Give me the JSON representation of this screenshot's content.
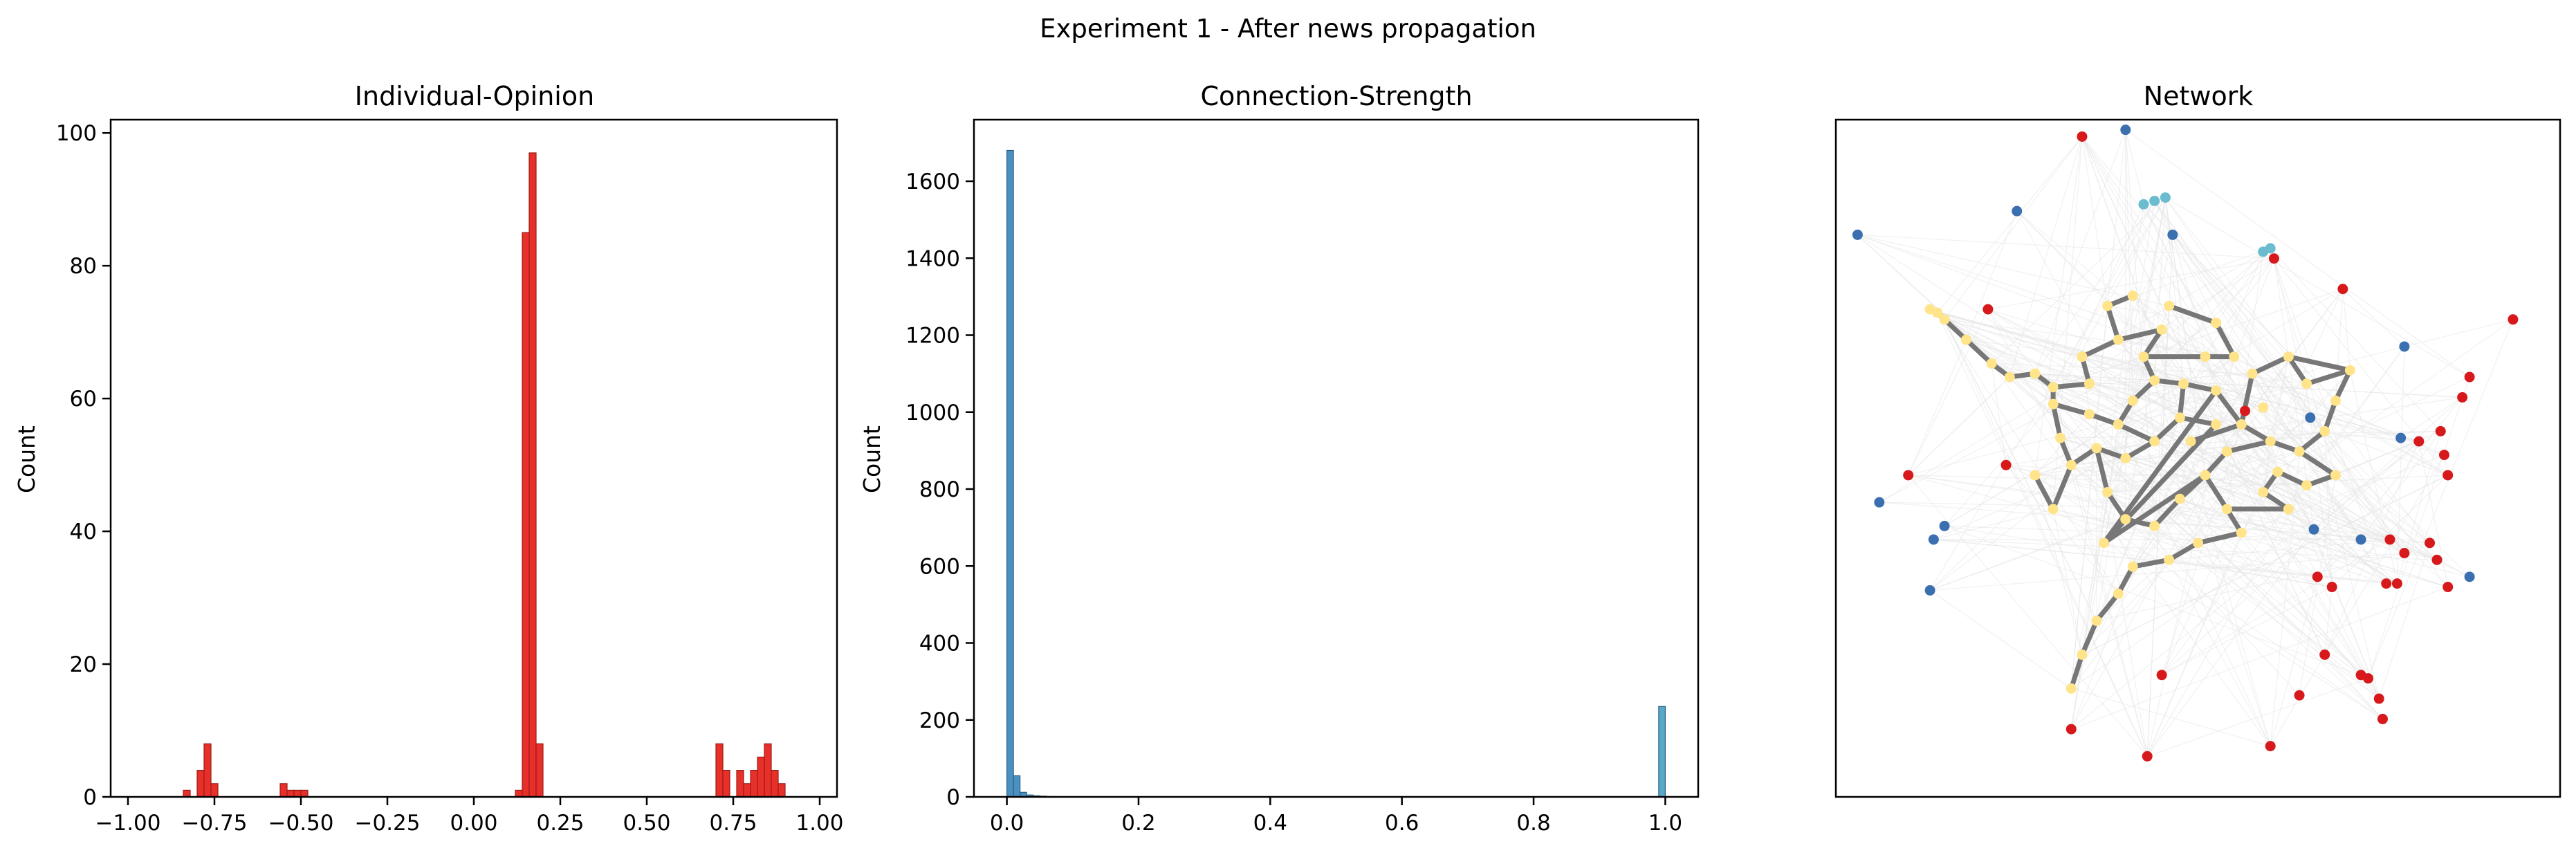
{
  "suptitle": "Experiment 1 - After news propagation",
  "colors": {
    "opinion_bar": "#e8302a",
    "opinion_edge": "#9b1b16",
    "strength_bar": "#4a90c0",
    "strength_bar_at_1": "#5aa8c8",
    "strength_edge": "#2a5f86",
    "node_red": "#d7191c",
    "node_blue": "#3a6fb0",
    "node_cyan": "#6cbcd0",
    "node_yellow": "#ffe48a",
    "edge_dark": "#777777",
    "edge_light": "#e6e6e6"
  },
  "chart_data": [
    {
      "type": "bar",
      "title": "Individual-Opinion",
      "xlabel": "",
      "ylabel": "Count",
      "xlim": [
        -1.05,
        1.05
      ],
      "ylim": [
        0,
        102
      ],
      "xticks": [
        "−1.00",
        "−0.75",
        "−0.50",
        "−0.25",
        "0.00",
        "0.25",
        "0.50",
        "0.75",
        "1.00"
      ],
      "xtick_values": [
        -1.0,
        -0.75,
        -0.5,
        -0.25,
        0.0,
        0.25,
        0.5,
        0.75,
        1.0
      ],
      "yticks": [
        "0",
        "20",
        "40",
        "60",
        "80",
        "100"
      ],
      "ytick_values": [
        0,
        20,
        40,
        60,
        80,
        100
      ],
      "bin_width": 0.02,
      "bins": [
        {
          "x": -0.84,
          "value": 1
        },
        {
          "x": -0.8,
          "value": 4
        },
        {
          "x": -0.78,
          "value": 8
        },
        {
          "x": -0.76,
          "value": 2
        },
        {
          "x": -0.56,
          "value": 2
        },
        {
          "x": -0.54,
          "value": 1
        },
        {
          "x": -0.52,
          "value": 1
        },
        {
          "x": -0.5,
          "value": 1
        },
        {
          "x": 0.12,
          "value": 1
        },
        {
          "x": 0.14,
          "value": 85
        },
        {
          "x": 0.16,
          "value": 97
        },
        {
          "x": 0.18,
          "value": 8
        },
        {
          "x": 0.7,
          "value": 8
        },
        {
          "x": 0.72,
          "value": 4
        },
        {
          "x": 0.76,
          "value": 4
        },
        {
          "x": 0.78,
          "value": 2
        },
        {
          "x": 0.8,
          "value": 4
        },
        {
          "x": 0.82,
          "value": 6
        },
        {
          "x": 0.84,
          "value": 8
        },
        {
          "x": 0.86,
          "value": 4
        },
        {
          "x": 0.88,
          "value": 2
        }
      ]
    },
    {
      "type": "bar",
      "title": "Connection-Strength",
      "xlabel": "",
      "ylabel": "Count",
      "xlim": [
        -0.05,
        1.05
      ],
      "ylim": [
        0,
        1760
      ],
      "xticks": [
        "0.0",
        "0.2",
        "0.4",
        "0.6",
        "0.8",
        "1.0"
      ],
      "xtick_values": [
        0.0,
        0.2,
        0.4,
        0.6,
        0.8,
        1.0
      ],
      "yticks": [
        "0",
        "200",
        "400",
        "600",
        "800",
        "1000",
        "1200",
        "1400",
        "1600"
      ],
      "ytick_values": [
        0,
        200,
        400,
        600,
        800,
        1000,
        1200,
        1400,
        1600
      ],
      "bin_width": 0.01,
      "bins": [
        {
          "x": 0.0,
          "value": 1680
        },
        {
          "x": 0.01,
          "value": 55
        },
        {
          "x": 0.02,
          "value": 12
        },
        {
          "x": 0.03,
          "value": 5
        },
        {
          "x": 0.04,
          "value": 3
        },
        {
          "x": 0.05,
          "value": 2
        },
        {
          "x": 0.06,
          "value": 1
        },
        {
          "x": 0.99,
          "value": 235
        }
      ]
    },
    {
      "type": "network",
      "title": "Network",
      "xlim": [
        -1,
        1
      ],
      "ylim": [
        -1,
        1
      ],
      "nodes": [
        {
          "x": -0.32,
          "y": 0.95,
          "c": "red"
        },
        {
          "x": -0.58,
          "y": 0.44,
          "c": "red"
        },
        {
          "x": 0.21,
          "y": 0.59,
          "c": "red"
        },
        {
          "x": 0.4,
          "y": 0.5,
          "c": "red"
        },
        {
          "x": 0.87,
          "y": 0.41,
          "c": "red"
        },
        {
          "x": 0.75,
          "y": 0.24,
          "c": "red"
        },
        {
          "x": 0.73,
          "y": 0.18,
          "c": "red"
        },
        {
          "x": 0.67,
          "y": 0.08,
          "c": "red"
        },
        {
          "x": 0.68,
          "y": 0.01,
          "c": "red"
        },
        {
          "x": 0.69,
          "y": -0.05,
          "c": "red"
        },
        {
          "x": 0.61,
          "y": 0.05,
          "c": "red"
        },
        {
          "x": 0.53,
          "y": -0.24,
          "c": "red"
        },
        {
          "x": 0.57,
          "y": -0.28,
          "c": "red"
        },
        {
          "x": 0.64,
          "y": -0.25,
          "c": "red"
        },
        {
          "x": 0.55,
          "y": -0.37,
          "c": "red"
        },
        {
          "x": 0.66,
          "y": -0.3,
          "c": "red"
        },
        {
          "x": 0.69,
          "y": -0.38,
          "c": "red"
        },
        {
          "x": 0.37,
          "y": -0.38,
          "c": "red"
        },
        {
          "x": 0.52,
          "y": -0.37,
          "c": "red"
        },
        {
          "x": 0.35,
          "y": -0.58,
          "c": "red"
        },
        {
          "x": 0.47,
          "y": -0.65,
          "c": "red"
        },
        {
          "x": 0.5,
          "y": -0.71,
          "c": "red"
        },
        {
          "x": 0.51,
          "y": -0.77,
          "c": "red"
        },
        {
          "x": 0.45,
          "y": -0.64,
          "c": "red"
        },
        {
          "x": 0.28,
          "y": -0.7,
          "c": "red"
        },
        {
          "x": -0.1,
          "y": -0.64,
          "c": "red"
        },
        {
          "x": -0.35,
          "y": -0.8,
          "c": "red"
        },
        {
          "x": -0.14,
          "y": -0.88,
          "c": "red"
        },
        {
          "x": 0.2,
          "y": -0.85,
          "c": "red"
        },
        {
          "x": -0.8,
          "y": -0.05,
          "c": "red"
        },
        {
          "x": -0.53,
          "y": -0.02,
          "c": "red"
        },
        {
          "x": 0.33,
          "y": -0.35,
          "c": "red"
        },
        {
          "x": 0.13,
          "y": 0.14,
          "c": "red"
        },
        {
          "x": -0.2,
          "y": 0.97,
          "c": "blue"
        },
        {
          "x": -0.5,
          "y": 0.73,
          "c": "blue"
        },
        {
          "x": -0.07,
          "y": 0.66,
          "c": "blue"
        },
        {
          "x": -0.94,
          "y": 0.66,
          "c": "blue"
        },
        {
          "x": -0.88,
          "y": -0.13,
          "c": "blue"
        },
        {
          "x": -0.73,
          "y": -0.24,
          "c": "blue"
        },
        {
          "x": -0.7,
          "y": -0.2,
          "c": "blue"
        },
        {
          "x": -0.74,
          "y": -0.39,
          "c": "blue"
        },
        {
          "x": 0.32,
          "y": -0.21,
          "c": "blue"
        },
        {
          "x": 0.45,
          "y": -0.24,
          "c": "blue"
        },
        {
          "x": 0.56,
          "y": 0.06,
          "c": "blue"
        },
        {
          "x": 0.75,
          "y": -0.35,
          "c": "blue"
        },
        {
          "x": 0.31,
          "y": 0.12,
          "c": "blue"
        },
        {
          "x": 0.57,
          "y": 0.33,
          "c": "blue"
        },
        {
          "x": -0.15,
          "y": 0.75,
          "c": "cyan"
        },
        {
          "x": -0.12,
          "y": 0.76,
          "c": "cyan"
        },
        {
          "x": -0.09,
          "y": 0.77,
          "c": "cyan"
        },
        {
          "x": 0.18,
          "y": 0.61,
          "c": "cyan"
        },
        {
          "x": 0.2,
          "y": 0.62,
          "c": "cyan"
        },
        {
          "x": -0.74,
          "y": 0.44,
          "c": "yellow"
        },
        {
          "x": -0.72,
          "y": 0.43,
          "c": "yellow"
        },
        {
          "x": -0.7,
          "y": 0.41,
          "c": "yellow"
        },
        {
          "x": -0.64,
          "y": 0.35,
          "c": "yellow"
        },
        {
          "x": -0.57,
          "y": 0.28,
          "c": "yellow"
        },
        {
          "x": -0.52,
          "y": 0.24,
          "c": "yellow"
        },
        {
          "x": -0.45,
          "y": 0.25,
          "c": "yellow"
        },
        {
          "x": -0.4,
          "y": 0.21,
          "c": "yellow"
        },
        {
          "x": -0.4,
          "y": 0.16,
          "c": "yellow"
        },
        {
          "x": -0.3,
          "y": 0.13,
          "c": "yellow"
        },
        {
          "x": -0.22,
          "y": 0.1,
          "c": "yellow"
        },
        {
          "x": -0.18,
          "y": 0.17,
          "c": "yellow"
        },
        {
          "x": -0.12,
          "y": 0.23,
          "c": "yellow"
        },
        {
          "x": -0.04,
          "y": 0.22,
          "c": "yellow"
        },
        {
          "x": 0.05,
          "y": 0.2,
          "c": "yellow"
        },
        {
          "x": 0.12,
          "y": 0.1,
          "c": "yellow"
        },
        {
          "x": 0.2,
          "y": 0.05,
          "c": "yellow"
        },
        {
          "x": 0.28,
          "y": 0.02,
          "c": "yellow"
        },
        {
          "x": 0.35,
          "y": 0.08,
          "c": "yellow"
        },
        {
          "x": 0.38,
          "y": 0.17,
          "c": "yellow"
        },
        {
          "x": 0.42,
          "y": 0.26,
          "c": "yellow"
        },
        {
          "x": 0.38,
          "y": -0.05,
          "c": "yellow"
        },
        {
          "x": 0.3,
          "y": -0.08,
          "c": "yellow"
        },
        {
          "x": 0.22,
          "y": -0.04,
          "c": "yellow"
        },
        {
          "x": 0.18,
          "y": -0.1,
          "c": "yellow"
        },
        {
          "x": 0.25,
          "y": -0.15,
          "c": "yellow"
        },
        {
          "x": 0.15,
          "y": 0.25,
          "c": "yellow"
        },
        {
          "x": -0.25,
          "y": 0.45,
          "c": "yellow"
        },
        {
          "x": -0.22,
          "y": 0.35,
          "c": "yellow"
        },
        {
          "x": -0.18,
          "y": 0.48,
          "c": "yellow"
        },
        {
          "x": -0.1,
          "y": 0.38,
          "c": "yellow"
        },
        {
          "x": -0.15,
          "y": 0.3,
          "c": "yellow"
        },
        {
          "x": 0.02,
          "y": 0.3,
          "c": "yellow"
        },
        {
          "x": -0.05,
          "y": 0.12,
          "c": "yellow"
        },
        {
          "x": -0.12,
          "y": 0.05,
          "c": "yellow"
        },
        {
          "x": -0.2,
          "y": 0.0,
          "c": "yellow"
        },
        {
          "x": -0.28,
          "y": 0.03,
          "c": "yellow"
        },
        {
          "x": -0.35,
          "y": -0.02,
          "c": "yellow"
        },
        {
          "x": -0.38,
          "y": 0.06,
          "c": "yellow"
        },
        {
          "x": -0.25,
          "y": -0.1,
          "c": "yellow"
        },
        {
          "x": -0.2,
          "y": -0.18,
          "c": "yellow"
        },
        {
          "x": -0.12,
          "y": -0.2,
          "c": "yellow"
        },
        {
          "x": -0.05,
          "y": -0.12,
          "c": "yellow"
        },
        {
          "x": 0.02,
          "y": -0.05,
          "c": "yellow"
        },
        {
          "x": 0.08,
          "y": 0.02,
          "c": "yellow"
        },
        {
          "x": 0.08,
          "y": -0.15,
          "c": "yellow"
        },
        {
          "x": 0.12,
          "y": -0.22,
          "c": "yellow"
        },
        {
          "x": 0.0,
          "y": -0.25,
          "c": "yellow"
        },
        {
          "x": -0.08,
          "y": -0.3,
          "c": "yellow"
        },
        {
          "x": -0.18,
          "y": -0.32,
          "c": "yellow"
        },
        {
          "x": -0.22,
          "y": -0.4,
          "c": "yellow"
        },
        {
          "x": -0.28,
          "y": -0.48,
          "c": "yellow"
        },
        {
          "x": -0.32,
          "y": -0.58,
          "c": "yellow"
        },
        {
          "x": -0.35,
          "y": -0.68,
          "c": "yellow"
        },
        {
          "x": -0.3,
          "y": 0.22,
          "c": "yellow"
        },
        {
          "x": -0.32,
          "y": 0.3,
          "c": "yellow"
        },
        {
          "x": -0.08,
          "y": 0.45,
          "c": "yellow"
        },
        {
          "x": 0.05,
          "y": 0.4,
          "c": "yellow"
        },
        {
          "x": 0.1,
          "y": 0.3,
          "c": "yellow"
        },
        {
          "x": 0.25,
          "y": 0.3,
          "c": "yellow"
        },
        {
          "x": 0.3,
          "y": 0.22,
          "c": "yellow"
        },
        {
          "x": -0.4,
          "y": -0.15,
          "c": "yellow"
        },
        {
          "x": -0.45,
          "y": -0.05,
          "c": "yellow"
        },
        {
          "x": 0.18,
          "y": 0.15,
          "c": "yellow"
        },
        {
          "x": -0.02,
          "y": 0.05,
          "c": "yellow"
        },
        {
          "x": 0.05,
          "y": 0.1,
          "c": "yellow"
        },
        {
          "x": -0.26,
          "y": -0.25,
          "c": "yellow"
        }
      ],
      "edges": [
        [
          52,
          53
        ],
        [
          53,
          54
        ],
        [
          54,
          55
        ],
        [
          55,
          56
        ],
        [
          56,
          57
        ],
        [
          57,
          58
        ],
        [
          58,
          59
        ],
        [
          59,
          60
        ],
        [
          60,
          61
        ],
        [
          61,
          62
        ],
        [
          62,
          63
        ],
        [
          63,
          64
        ],
        [
          64,
          65
        ],
        [
          65,
          66
        ],
        [
          66,
          67
        ],
        [
          67,
          68
        ],
        [
          68,
          69
        ],
        [
          69,
          70
        ],
        [
          70,
          71
        ],
        [
          71,
          72
        ],
        [
          69,
          73
        ],
        [
          73,
          74
        ],
        [
          74,
          75
        ],
        [
          75,
          76
        ],
        [
          76,
          77
        ],
        [
          67,
          78
        ],
        [
          78,
          111
        ],
        [
          111,
          112
        ],
        [
          112,
          72
        ],
        [
          79,
          80
        ],
        [
          79,
          81
        ],
        [
          80,
          82
        ],
        [
          82,
          83
        ],
        [
          83,
          84
        ],
        [
          84,
          110
        ],
        [
          110,
          109
        ],
        [
          80,
          107
        ],
        [
          107,
          106
        ],
        [
          106,
          59
        ],
        [
          108,
          109
        ],
        [
          85,
          86
        ],
        [
          86,
          87
        ],
        [
          87,
          88
        ],
        [
          88,
          89
        ],
        [
          89,
          90
        ],
        [
          90,
          60
        ],
        [
          88,
          91
        ],
        [
          91,
          92
        ],
        [
          92,
          93
        ],
        [
          93,
          94
        ],
        [
          94,
          95
        ],
        [
          95,
          96
        ],
        [
          96,
          68
        ],
        [
          95,
          97
        ],
        [
          97,
          98
        ],
        [
          98,
          99
        ],
        [
          99,
          100
        ],
        [
          100,
          101
        ],
        [
          101,
          102
        ],
        [
          102,
          103
        ],
        [
          103,
          104
        ],
        [
          104,
          105
        ],
        [
          85,
          65
        ],
        [
          85,
          117
        ],
        [
          117,
          118
        ],
        [
          118,
          66
        ],
        [
          116,
          67
        ],
        [
          91,
          119
        ],
        [
          119,
          102
        ],
        [
          113,
          89
        ],
        [
          114,
          113
        ],
        [
          99,
          98
        ],
        [
          62,
          86
        ],
        [
          64,
          83
        ],
        [
          97,
          77
        ],
        [
          94,
          119
        ],
        [
          72,
          111
        ],
        [
          118,
          95
        ]
      ]
    }
  ]
}
